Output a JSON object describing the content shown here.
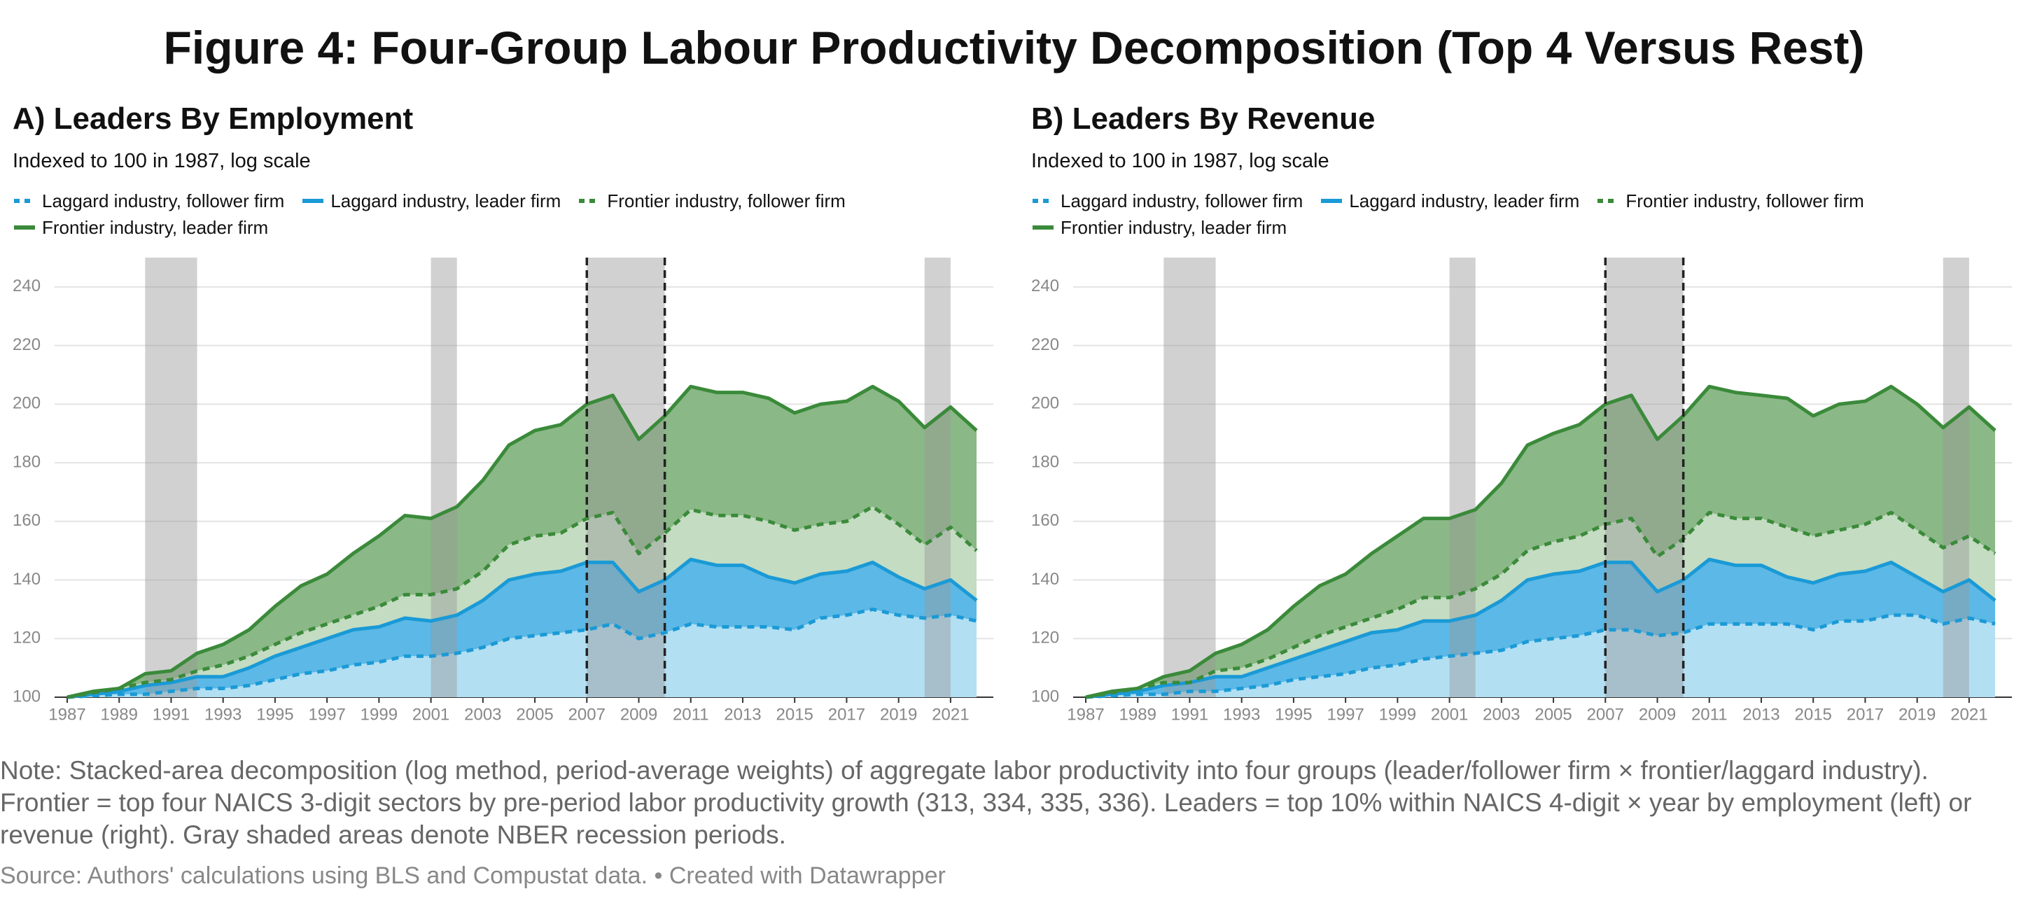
{
  "title": "Figure 4: Four-Group Labour Productivity Decomposition (Top 4 Versus Rest)",
  "note": "Note: Stacked-area decomposition (log method, period-average weights) of aggregate labor productivity into four groups (leader/follower firm × frontier/laggard industry). Frontier = top four NAICS 3-digit sectors by pre-period labor productivity growth (313, 334, 335, 336). Leaders = top 10% within NAICS 4-digit × year by employment (left) or revenue (right). Gray shaded areas denote NBER recession periods.",
  "source": "Source: Authors' calculations using BLS and Compustat data. • Created with Datawrapper",
  "chart_data": [
    {
      "type": "area",
      "title": "A) Leaders By Employment",
      "subtitle": "Indexed to 100 in 1987, log scale",
      "x": [
        1987,
        1988,
        1989,
        1990,
        1991,
        1992,
        1993,
        1994,
        1995,
        1996,
        1997,
        1998,
        1999,
        2000,
        2001,
        2002,
        2003,
        2004,
        2005,
        2006,
        2007,
        2008,
        2009,
        2010,
        2011,
        2012,
        2013,
        2014,
        2015,
        2016,
        2017,
        2018,
        2019,
        2020,
        2021,
        2022
      ],
      "xlim": [
        1987,
        2022
      ],
      "xticks": [
        1987,
        1989,
        1991,
        1993,
        1995,
        1997,
        1999,
        2001,
        2003,
        2005,
        2007,
        2009,
        2011,
        2013,
        2015,
        2017,
        2019,
        2021
      ],
      "ylim": [
        100,
        250
      ],
      "yticks": [
        100,
        120,
        140,
        160,
        180,
        200,
        220,
        240
      ],
      "grid": true,
      "recessions": [
        [
          1990,
          1992
        ],
        [
          2001,
          2002
        ],
        [
          2007,
          2010
        ],
        [
          2020,
          2021
        ]
      ],
      "vlines": [
        2007,
        2010
      ],
      "series": [
        {
          "name": "Laggard industry, follower firm",
          "color": "#1a9ad6",
          "fill": "#b3dff3",
          "dashed": true,
          "values": [
            0,
            0.5,
            1,
            1,
            2,
            3,
            3,
            4,
            6,
            8,
            9,
            11,
            12,
            14,
            14,
            15,
            17,
            20,
            21,
            22,
            23,
            25,
            20,
            22,
            25,
            24,
            24,
            24,
            23,
            27,
            28,
            30,
            28,
            27,
            28,
            26
          ]
        },
        {
          "name": "Laggard industry, leader firm",
          "color": "#1a9ad6",
          "fill": "#5cb8e6",
          "dashed": false,
          "values": [
            0,
            0.5,
            1,
            3,
            3,
            4,
            4,
            6,
            8,
            9,
            11,
            12,
            12,
            13,
            12,
            13,
            16,
            20,
            21,
            21,
            23,
            21,
            16,
            18,
            22,
            21,
            21,
            17,
            16,
            15,
            15,
            16,
            13,
            10,
            12,
            7
          ]
        },
        {
          "name": "Frontier industry, follower firm",
          "color": "#3a8a3a",
          "fill": "#c4dcc2",
          "dashed": true,
          "values": [
            0,
            0.5,
            1,
            1,
            1,
            2,
            4,
            4,
            4,
            5,
            5,
            5,
            7,
            8,
            9,
            9,
            10,
            12,
            13,
            13,
            15,
            17,
            13,
            16,
            17,
            17,
            17,
            19,
            18,
            17,
            17,
            19,
            18,
            15,
            18,
            17
          ]
        },
        {
          "name": "Frontier industry, leader firm",
          "color": "#3a8a3a",
          "fill": "#8ab886",
          "dashed": false,
          "values": [
            0,
            0.5,
            0,
            3,
            3,
            6,
            7,
            9,
            13,
            16,
            17,
            21,
            24,
            27,
            26,
            28,
            31,
            34,
            36,
            37,
            39,
            40,
            39,
            40,
            42,
            42,
            42,
            42,
            40,
            41,
            41,
            41,
            42,
            40,
            41,
            41
          ]
        }
      ]
    },
    {
      "type": "area",
      "title": "B) Leaders By Revenue",
      "subtitle": "Indexed to 100 in 1987, log scale",
      "x": [
        1987,
        1988,
        1989,
        1990,
        1991,
        1992,
        1993,
        1994,
        1995,
        1996,
        1997,
        1998,
        1999,
        2000,
        2001,
        2002,
        2003,
        2004,
        2005,
        2006,
        2007,
        2008,
        2009,
        2010,
        2011,
        2012,
        2013,
        2014,
        2015,
        2016,
        2017,
        2018,
        2019,
        2020,
        2021,
        2022
      ],
      "xlim": [
        1987,
        2022
      ],
      "xticks": [
        1987,
        1989,
        1991,
        1993,
        1995,
        1997,
        1999,
        2001,
        2003,
        2005,
        2007,
        2009,
        2011,
        2013,
        2015,
        2017,
        2019,
        2021
      ],
      "ylim": [
        100,
        250
      ],
      "yticks": [
        100,
        120,
        140,
        160,
        180,
        200,
        220,
        240
      ],
      "grid": true,
      "recessions": [
        [
          1990,
          1992
        ],
        [
          2001,
          2002
        ],
        [
          2007,
          2010
        ],
        [
          2020,
          2021
        ]
      ],
      "vlines": [
        2007,
        2010
      ],
      "series": [
        {
          "name": "Laggard industry, follower firm",
          "color": "#1a9ad6",
          "fill": "#b3dff3",
          "dashed": true,
          "values": [
            0,
            0.5,
            1,
            1,
            2,
            2,
            3,
            4,
            6,
            7,
            8,
            10,
            11,
            13,
            14,
            15,
            16,
            19,
            20,
            21,
            23,
            23,
            21,
            22,
            25,
            25,
            25,
            25,
            23,
            26,
            26,
            28,
            28,
            25,
            27,
            25
          ]
        },
        {
          "name": "Laggard industry, leader firm",
          "color": "#1a9ad6",
          "fill": "#5cb8e6",
          "dashed": false,
          "values": [
            0,
            0.5,
            1,
            3,
            3,
            5,
            4,
            6,
            7,
            9,
            11,
            12,
            12,
            13,
            12,
            13,
            17,
            21,
            22,
            22,
            23,
            23,
            15,
            18,
            22,
            20,
            20,
            16,
            16,
            16,
            17,
            18,
            13,
            11,
            13,
            8
          ]
        },
        {
          "name": "Frontier industry, follower firm",
          "color": "#3a8a3a",
          "fill": "#c4dcc2",
          "dashed": true,
          "values": [
            0,
            0.5,
            1,
            1,
            0,
            2,
            3,
            3,
            4,
            5,
            5,
            5,
            7,
            8,
            8,
            9,
            9,
            10,
            11,
            12,
            13,
            15,
            12,
            14,
            16,
            16,
            16,
            17,
            16,
            15,
            16,
            17,
            16,
            15,
            15,
            16
          ]
        },
        {
          "name": "Frontier industry, leader firm",
          "color": "#3a8a3a",
          "fill": "#8ab886",
          "dashed": false,
          "values": [
            0,
            0.5,
            0,
            2,
            4,
            6,
            8,
            10,
            14,
            17,
            18,
            22,
            25,
            27,
            27,
            27,
            31,
            36,
            37,
            38,
            41,
            42,
            40,
            42,
            43,
            43,
            42,
            44,
            41,
            43,
            42,
            43,
            43,
            41,
            44,
            42
          ]
        }
      ]
    }
  ]
}
